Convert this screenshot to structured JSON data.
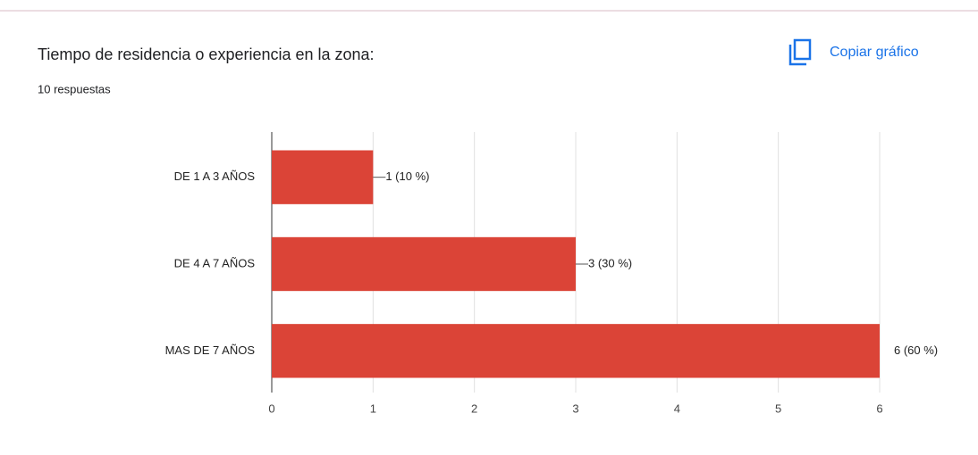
{
  "chart_data": {
    "type": "bar",
    "orientation": "horizontal",
    "title": "Tiempo de residencia o experiencia en la zona:",
    "subtitle": "10 respuestas",
    "button": "Copiar gráfico",
    "categories": [
      "DE 1 A 3 AÑOS",
      "DE 4 A 7 AÑOS",
      "MAS DE 7 AÑOS"
    ],
    "values": [
      1,
      3,
      6
    ],
    "value_labels": [
      "1 (10 %)",
      "3 (30 %)",
      "6 (60 %)"
    ],
    "color": "#db4437",
    "xlim": [
      0,
      6
    ],
    "xticks": [
      0,
      1,
      2,
      3,
      4,
      5,
      6
    ],
    "grid": true
  }
}
